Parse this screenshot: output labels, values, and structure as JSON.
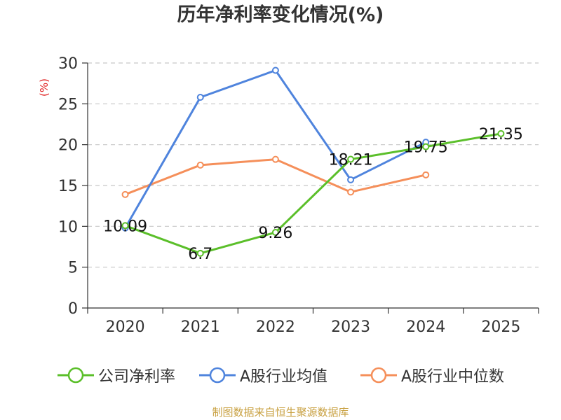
{
  "title": "历年净利率变化情况(%)",
  "source_note": "制图数据来自恒生聚源数据库",
  "colors": {
    "company": "#5bbf2a",
    "industry_avg": "#4f84dd",
    "industry_median": "#f58f5a",
    "axis": "#333333",
    "grid": "#c8c8c8",
    "unit": "#e02020"
  },
  "chart_data": {
    "type": "line",
    "title": "历年净利率变化情况(%)",
    "xlabel": "",
    "ylabel": "(%)",
    "categories": [
      "2020",
      "2021",
      "2022",
      "2023",
      "2024",
      "2025"
    ],
    "ylim": [
      0,
      30
    ],
    "yticks": [
      0,
      5,
      10,
      15,
      20,
      25,
      30
    ],
    "grid": true,
    "legend_position": "bottom",
    "series": [
      {
        "name": "公司净利率",
        "color_key": "company",
        "values": [
          10.09,
          6.7,
          9.26,
          18.21,
          19.75,
          21.35
        ],
        "data_labels": [
          "10.09",
          "6.7",
          "9.26",
          "18.21",
          "19.75",
          "21.35"
        ]
      },
      {
        "name": "A股行业均值",
        "color_key": "industry_avg",
        "values": [
          9.8,
          25.8,
          29.1,
          15.7,
          20.3,
          null
        ],
        "data_labels": []
      },
      {
        "name": "A股行业中位数",
        "color_key": "industry_median",
        "values": [
          13.9,
          17.5,
          18.2,
          14.2,
          16.3,
          null
        ],
        "data_labels": []
      }
    ]
  }
}
